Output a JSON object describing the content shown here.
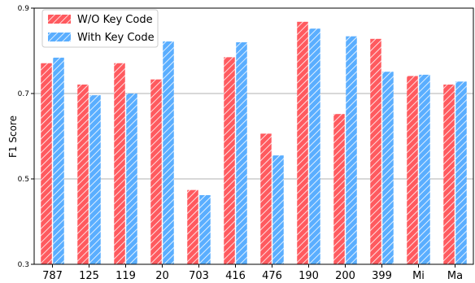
{
  "chart_data": {
    "type": "bar",
    "title": "",
    "xlabel": "",
    "ylabel": "F1 Score",
    "ylim": [
      0.3,
      0.9
    ],
    "yticks": [
      "0.3",
      "0.5",
      "0.7",
      "0.9"
    ],
    "grid": "horizontal at major ticks",
    "legend_position": "top-left",
    "categories": [
      "787",
      "125",
      "119",
      "20",
      "703",
      "416",
      "476",
      "190",
      "200",
      "399",
      "Mi",
      "Ma"
    ],
    "series": [
      {
        "name": "W/O Key Code",
        "color": "#ff5a5f",
        "hatch": "diagonal",
        "values": [
          0.771,
          0.721,
          0.771,
          0.733,
          0.474,
          0.785,
          0.606,
          0.868,
          0.652,
          0.828,
          0.741,
          0.721
        ]
      },
      {
        "name": "With Key Code",
        "color": "#5aaeff",
        "hatch": "diagonal",
        "values": [
          0.784,
          0.696,
          0.7,
          0.822,
          0.462,
          0.82,
          0.555,
          0.852,
          0.834,
          0.751,
          0.744,
          0.728
        ]
      }
    ]
  }
}
